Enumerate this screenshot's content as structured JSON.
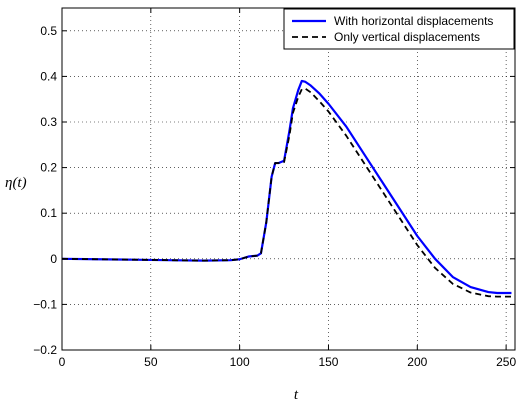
{
  "chart_data": {
    "type": "line",
    "title": "",
    "xlabel": "t",
    "ylabel": "η(t)",
    "xlim": [
      0,
      255
    ],
    "ylim": [
      -0.2,
      0.55
    ],
    "xticks": [
      0,
      50,
      100,
      150,
      200,
      250
    ],
    "yticks": [
      -0.2,
      -0.1,
      0,
      0.1,
      0.2,
      0.3,
      0.4,
      0.5
    ],
    "ytick_labels": [
      "−0.2",
      "−0.1",
      "0",
      "0.1",
      "0.2",
      "0.3",
      "0.4",
      "0.5"
    ],
    "grid": true,
    "legend_position": "top-right",
    "series": [
      {
        "name": "With horizontal displacements",
        "color": "#0000ff",
        "dash": "solid",
        "x": [
          0,
          20,
          40,
          60,
          80,
          95,
          100,
          105,
          110,
          112,
          115,
          118,
          120,
          122,
          125,
          128,
          130,
          133,
          135,
          137,
          140,
          145,
          150,
          160,
          170,
          180,
          190,
          200,
          210,
          220,
          230,
          240,
          245,
          250,
          253
        ],
        "y": [
          0.0,
          -0.001,
          -0.002,
          -0.003,
          -0.004,
          -0.003,
          -0.001,
          0.005,
          0.007,
          0.012,
          0.08,
          0.18,
          0.21,
          0.21,
          0.215,
          0.28,
          0.33,
          0.37,
          0.39,
          0.388,
          0.38,
          0.362,
          0.34,
          0.29,
          0.23,
          0.17,
          0.11,
          0.05,
          0.0,
          -0.04,
          -0.062,
          -0.073,
          -0.075,
          -0.075,
          -0.075
        ]
      },
      {
        "name": "Only vertical displacements",
        "color": "#000000",
        "dash": "dashed",
        "x": [
          0,
          20,
          40,
          60,
          80,
          95,
          100,
          105,
          110,
          112,
          115,
          118,
          120,
          122,
          125,
          128,
          130,
          133,
          135,
          137,
          140,
          145,
          150,
          160,
          170,
          180,
          190,
          200,
          210,
          220,
          230,
          240,
          245,
          250,
          253
        ],
        "y": [
          0.0,
          -0.001,
          -0.002,
          -0.003,
          -0.004,
          -0.003,
          -0.001,
          0.005,
          0.007,
          0.012,
          0.08,
          0.18,
          0.21,
          0.21,
          0.212,
          0.27,
          0.32,
          0.355,
          0.372,
          0.373,
          0.365,
          0.345,
          0.323,
          0.27,
          0.21,
          0.15,
          0.09,
          0.03,
          -0.02,
          -0.055,
          -0.074,
          -0.082,
          -0.083,
          -0.083,
          -0.083
        ]
      }
    ]
  }
}
